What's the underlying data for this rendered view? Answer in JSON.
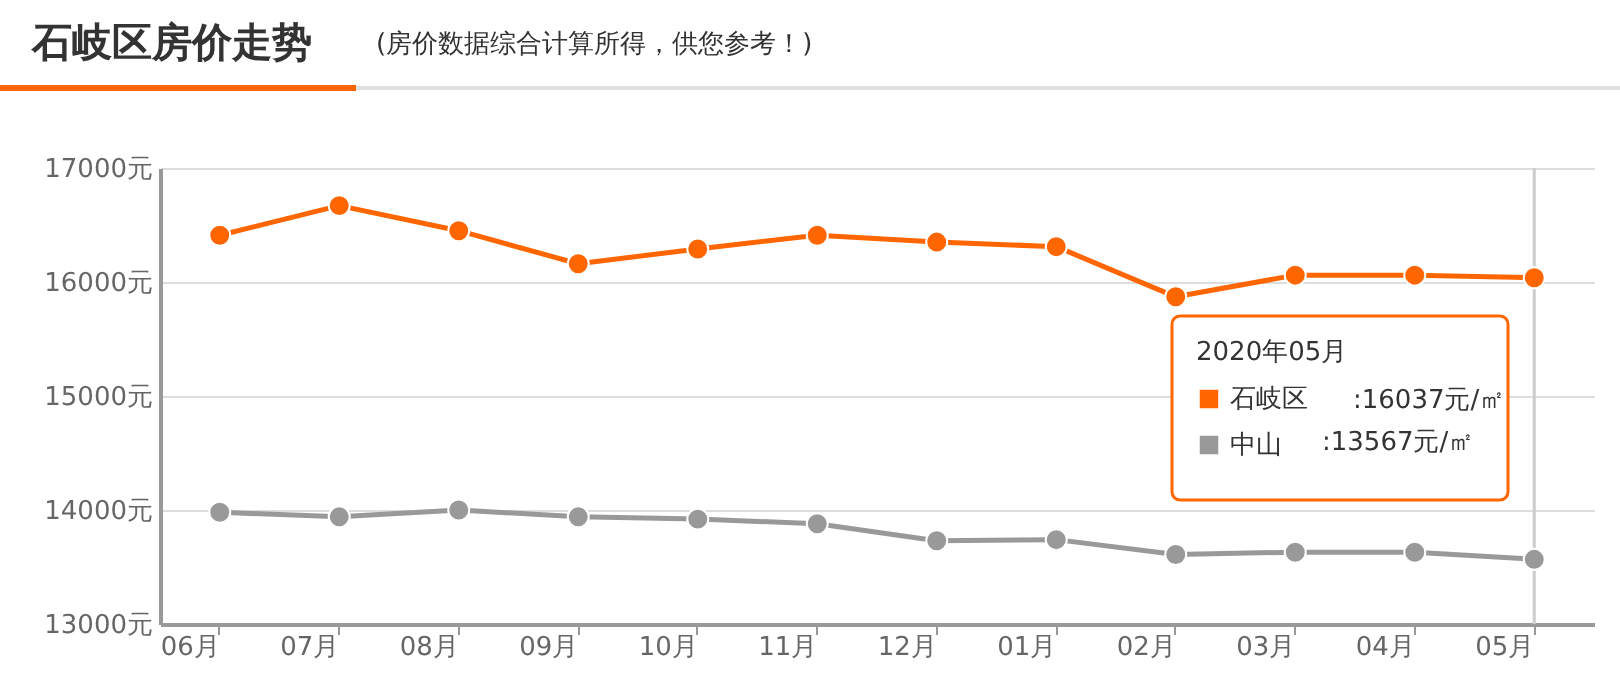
{
  "chart_data": {
    "type": "line",
    "title": "石岐区房价走势",
    "subtitle": "(房价数据综合计算所得，供您参考！)",
    "categories": [
      "06月",
      "07月",
      "08月",
      "09月",
      "10月",
      "11月",
      "12月",
      "01月",
      "02月",
      "03月",
      "04月",
      "05月"
    ],
    "series": [
      {
        "name": "石岐区",
        "color": "#ff6600",
        "values": [
          16410,
          16670,
          16450,
          16160,
          16290,
          16410,
          16350,
          16310,
          15870,
          16060,
          16060,
          16037
        ]
      },
      {
        "name": "中山",
        "color": "#999999",
        "values": [
          13980,
          13940,
          14000,
          13940,
          13920,
          13880,
          13730,
          13740,
          13610,
          13630,
          13630,
          13567
        ]
      }
    ],
    "ylim": [
      13000,
      17000
    ],
    "yticks": [
      {
        "value": 13000,
        "label": "13000元"
      },
      {
        "value": 14000,
        "label": "14000元"
      },
      {
        "value": 15000,
        "label": "15000元"
      },
      {
        "value": 16000,
        "label": "16000元"
      },
      {
        "value": 17000,
        "label": "17000元"
      }
    ],
    "grid": "y",
    "marker": "circle",
    "line_style": "solid",
    "legend": "right",
    "legend_title": "2020年05月",
    "ref_lines": [
      {
        "axis": "x",
        "value": "05月",
        "color": "#cccccc"
      }
    ],
    "annotations": [
      ":16037元/㎡",
      ":13567元/㎡"
    ]
  }
}
